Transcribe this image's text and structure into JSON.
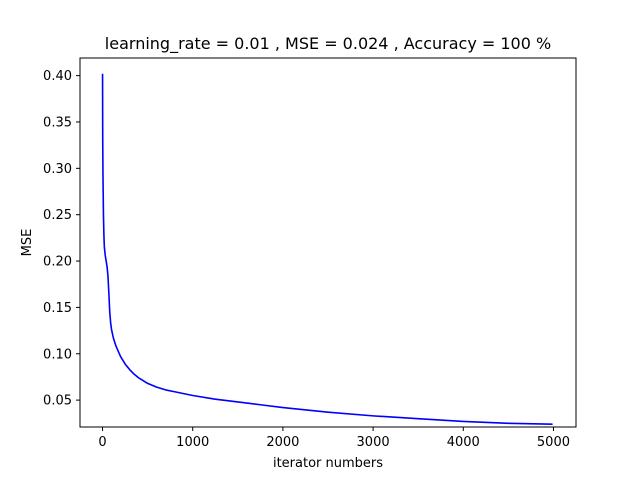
{
  "chart_data": {
    "type": "line",
    "title": "learning_rate = 0.01 , MSE = 0.024 , Accuracy = 100 %",
    "xlabel": "iterator numbers",
    "ylabel": "MSE",
    "xlim": [
      -250,
      5250
    ],
    "ylim": [
      0.021,
      0.419
    ],
    "x_ticks": [
      0,
      1000,
      2000,
      3000,
      4000,
      5000
    ],
    "x_tick_labels": [
      "0",
      "1000",
      "2000",
      "3000",
      "4000",
      "5000"
    ],
    "y_ticks": [
      0.05,
      0.1,
      0.15,
      0.2,
      0.25,
      0.3,
      0.35,
      0.4
    ],
    "y_tick_labels": [
      "0.05",
      "0.10",
      "0.15",
      "0.20",
      "0.25",
      "0.30",
      "0.35",
      "0.40"
    ],
    "grid": false,
    "series": [
      {
        "color": "#0000ff",
        "x": [
          0,
          2,
          5,
          10,
          15,
          20,
          30,
          40,
          50,
          60,
          70,
          80,
          90,
          100,
          120,
          150,
          200,
          250,
          300,
          350,
          400,
          500,
          600,
          700,
          800,
          1000,
          1250,
          1500,
          1750,
          2000,
          2500,
          3000,
          3500,
          4000,
          4500,
          4990
        ],
        "y": [
          0.402,
          0.33,
          0.29,
          0.25,
          0.228,
          0.215,
          0.206,
          0.2,
          0.194,
          0.184,
          0.165,
          0.145,
          0.133,
          0.126,
          0.117,
          0.108,
          0.097,
          0.089,
          0.083,
          0.078,
          0.074,
          0.068,
          0.064,
          0.061,
          0.059,
          0.055,
          0.051,
          0.048,
          0.045,
          0.042,
          0.037,
          0.033,
          0.03,
          0.027,
          0.025,
          0.024
        ]
      }
    ]
  }
}
